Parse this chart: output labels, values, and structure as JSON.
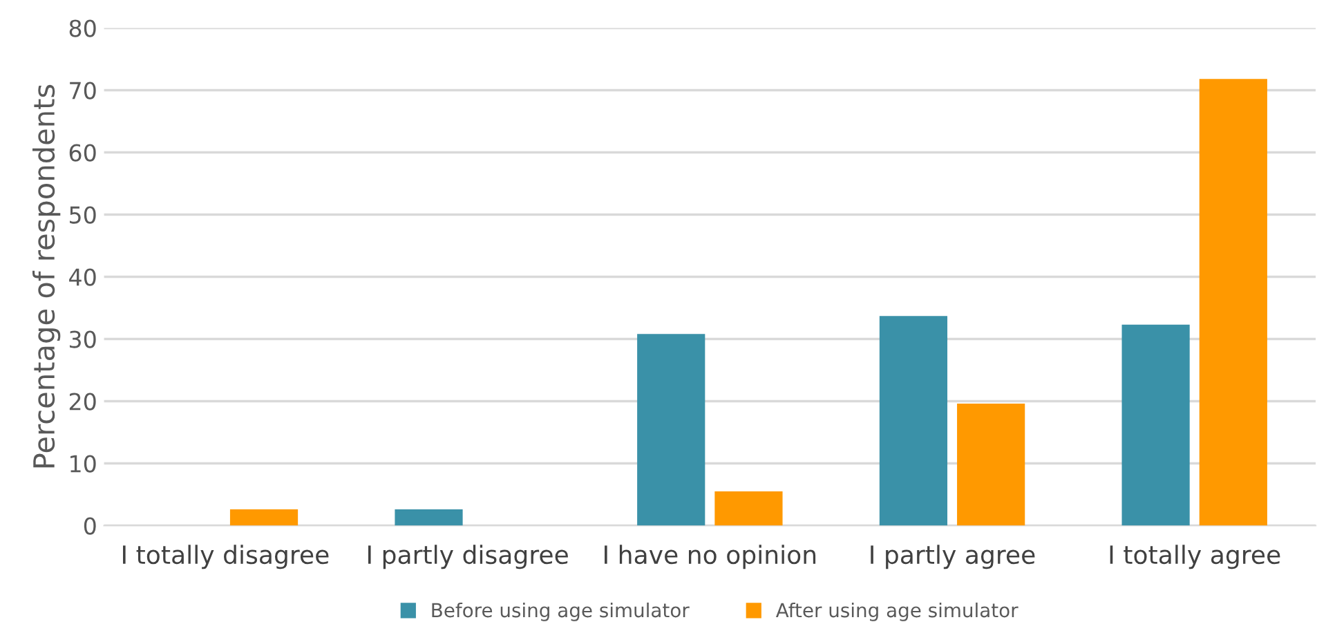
{
  "chart_data": {
    "type": "bar",
    "ylabel": "Percentage of respondents",
    "categories": [
      "I totally disagree",
      "I partly disagree",
      "I have no opinion",
      "I partly agree",
      "I totally agree"
    ],
    "series": [
      {
        "name": "Before using age simulator",
        "color": "#3a91a8",
        "values": [
          0,
          2.6,
          30.8,
          33.7,
          32.3
        ]
      },
      {
        "name": "After using age simulator",
        "color": "#ff9900",
        "values": [
          2.6,
          0,
          5.5,
          19.6,
          71.8
        ]
      }
    ],
    "ylim": [
      0,
      80
    ],
    "yticks": [
      0,
      10,
      20,
      30,
      40,
      50,
      60,
      70,
      80
    ],
    "grid": "y",
    "legend": "bottom"
  }
}
